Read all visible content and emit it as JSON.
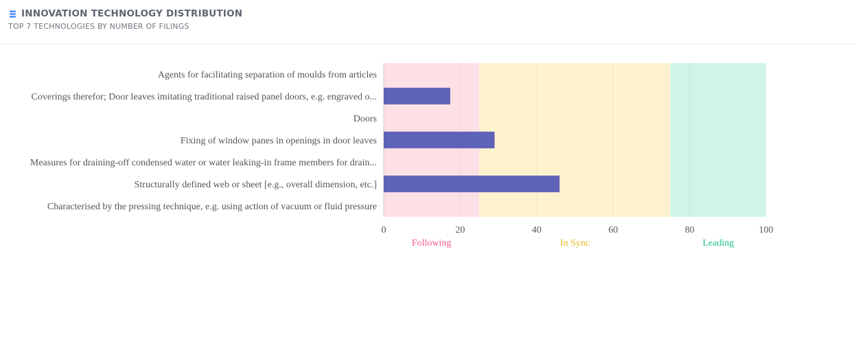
{
  "header": {
    "title": "INNOVATION TECHNOLOGY DISTRIBUTION",
    "subtitle": "TOP 7 TECHNOLOGIES BY NUMBER OF FILINGS",
    "icon": "layers-icon",
    "icon_color": "#3b82f6"
  },
  "chart_data": {
    "type": "bar",
    "orientation": "horizontal",
    "categories": [
      "Agents for facilitating separation of moulds from articles",
      "Coverings therefor; Door leaves imitating traditional raised panel doors, e.g. engraved o...",
      "Doors",
      "Fixing of window panes in openings in door leaves",
      "Measures for draining-off condensed water or water leaking-in frame members for drain...",
      "Structurally defined web or sheet [e.g., overall dimension, etc.]",
      "Characterised by the pressing technique, e.g. using action of vacuum or fluid pressure"
    ],
    "values": [
      0,
      17.4,
      0,
      29,
      0,
      46,
      0
    ],
    "xlim": [
      0,
      100
    ],
    "ticks": [
      "0",
      "20",
      "40",
      "60",
      "80",
      "100"
    ],
    "bar_color": "#5f63b8",
    "zones": [
      {
        "label": "Following",
        "from": 0,
        "to": 25,
        "fill": "#fde0e6",
        "text_color": "#ee5a83"
      },
      {
        "label": "In Sync",
        "from": 25,
        "to": 75,
        "fill": "#fff3cf",
        "text_color": "#e6b820"
      },
      {
        "label": "Leading",
        "from": 75,
        "to": 100,
        "fill": "#cff5ea",
        "text_color": "#1fbf8f"
      }
    ],
    "grid": true
  }
}
